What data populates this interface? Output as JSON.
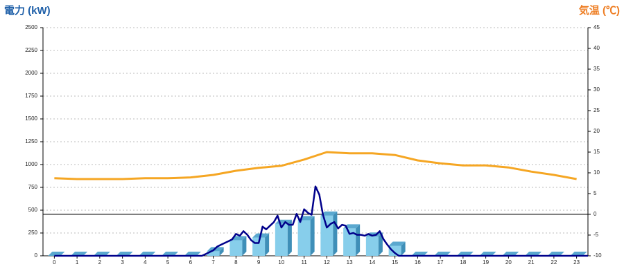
{
  "chart_data": {
    "type": "bar-line",
    "y_label": "電力 (kW)",
    "y2_label": "気温 (℃)",
    "categories": [
      "0",
      "1",
      "2",
      "3",
      "4",
      "5",
      "6",
      "7",
      "8",
      "9",
      "10",
      "11",
      "12",
      "13",
      "14",
      "15",
      "16",
      "17",
      "18",
      "19",
      "20",
      "21",
      "22",
      "23"
    ],
    "ylim": [
      0,
      2500
    ],
    "yticks": [
      0,
      250,
      500,
      750,
      1000,
      1250,
      1500,
      1750,
      2000,
      2250,
      2500
    ],
    "y2lim": [
      -10,
      45
    ],
    "y2ticks": [
      -10,
      -5,
      0,
      5,
      10,
      15,
      20,
      25,
      30,
      35,
      40,
      45
    ],
    "grid": true,
    "series": [
      {
        "type": "bar",
        "color": "#87ceeb",
        "values": [
          0,
          0,
          0,
          0,
          0,
          0,
          0,
          50,
          170,
          200,
          350,
          390,
          440,
          300,
          210,
          110,
          0,
          0,
          0,
          0,
          0,
          0,
          0,
          0
        ]
      },
      {
        "type": "line",
        "color": "#00008b",
        "x": [
          0,
          6.5,
          6.67,
          6.83,
          7.0,
          7.17,
          7.33,
          7.5,
          7.67,
          7.83,
          8.0,
          8.17,
          8.33,
          8.5,
          8.67,
          8.83,
          9.0,
          9.17,
          9.33,
          9.5,
          9.67,
          9.83,
          10.0,
          10.17,
          10.33,
          10.5,
          10.67,
          10.83,
          11.0,
          11.17,
          11.33,
          11.5,
          11.67,
          11.83,
          12.0,
          12.17,
          12.33,
          12.5,
          12.67,
          12.83,
          13.0,
          13.17,
          13.33,
          13.5,
          13.67,
          13.83,
          14.0,
          14.17,
          14.33,
          14.5,
          14.67,
          14.83,
          15.0,
          15.17,
          23.5
        ],
        "values": [
          0,
          0,
          20,
          40,
          60,
          100,
          120,
          140,
          160,
          180,
          240,
          220,
          270,
          230,
          170,
          140,
          140,
          320,
          290,
          330,
          370,
          440,
          310,
          370,
          340,
          340,
          460,
          370,
          510,
          470,
          450,
          760,
          670,
          450,
          310,
          350,
          370,
          300,
          340,
          330,
          240,
          250,
          230,
          230,
          220,
          240,
          220,
          230,
          270,
          180,
          120,
          70,
          30,
          0,
          0
        ]
      },
      {
        "type": "line",
        "axis": "y2",
        "color": "#f5a623",
        "values": [
          8.7,
          8.5,
          8.5,
          8.5,
          8.7,
          8.7,
          8.9,
          9.5,
          10.5,
          11.2,
          11.7,
          13.2,
          15,
          14.7,
          14.7,
          14.3,
          13,
          12.3,
          11.8,
          11.8,
          11.3,
          10.3,
          9.5,
          8.5
        ]
      }
    ]
  }
}
